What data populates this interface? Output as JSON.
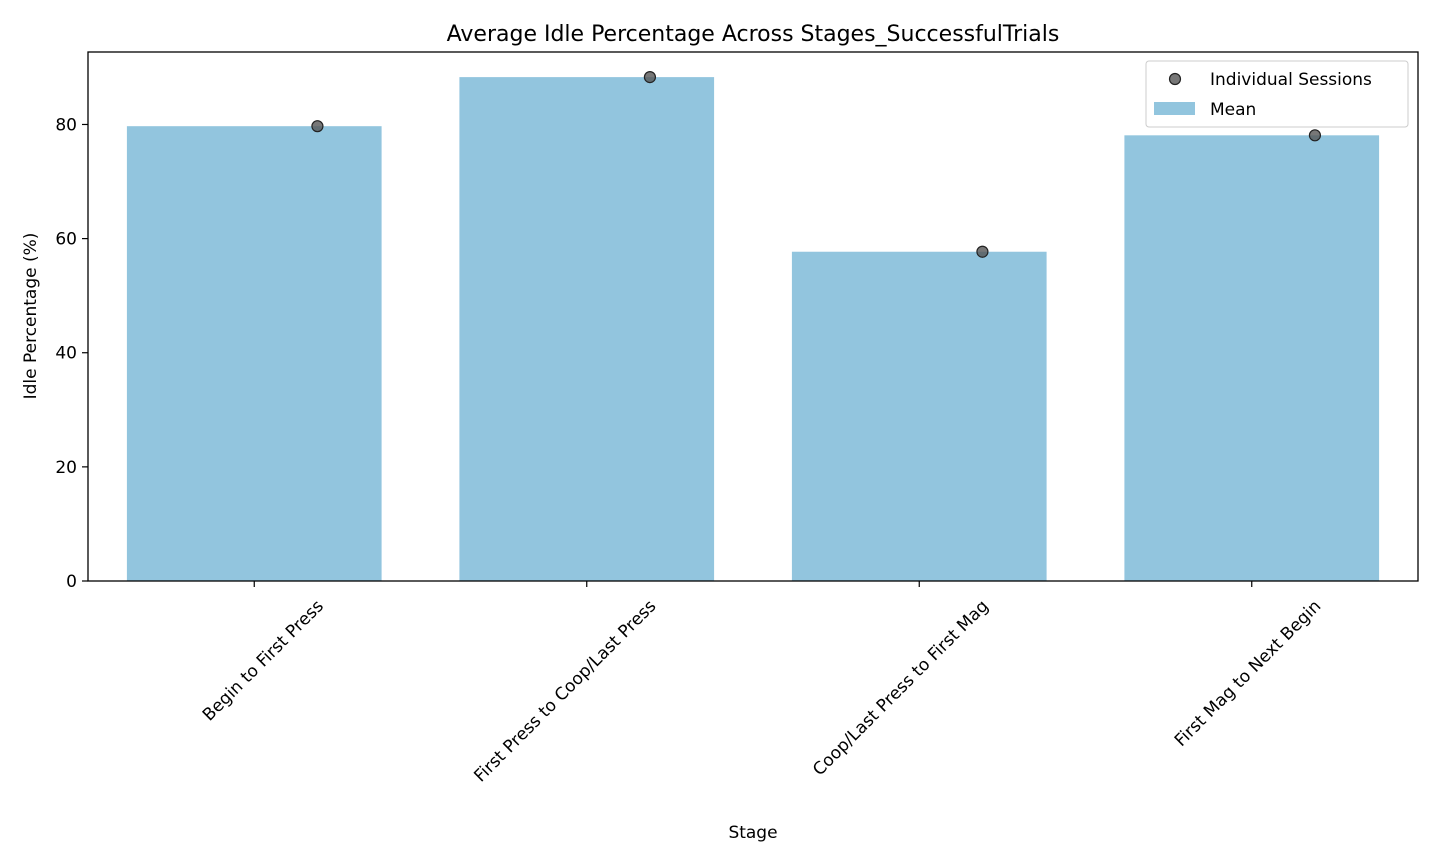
{
  "chart_data": {
    "type": "bar",
    "title": "Average Idle Percentage Across Stages_SuccessfulTrials",
    "xlabel": "Stage",
    "ylabel": "Idle Percentage (%)",
    "categories": [
      "Begin to First Press",
      "First Press to Coop/Last Press",
      "Coop/Last Press to First Mag",
      "First Mag to Next Begin"
    ],
    "series": [
      {
        "name": "Mean",
        "kind": "bar",
        "values": [
          79.7,
          88.3,
          57.7,
          78.1
        ],
        "color": "#92c5de"
      },
      {
        "name": "Individual Sessions",
        "kind": "scatter",
        "values": [
          79.7,
          88.3,
          57.7,
          78.1
        ],
        "color": "#555555"
      }
    ],
    "yticks": [
      0,
      20,
      40,
      60,
      80
    ],
    "ytick_labels": [
      "0",
      "20",
      "40",
      "60",
      "80"
    ],
    "ylim": [
      0,
      92.7
    ],
    "grid": false,
    "legend": {
      "placement": "top-right",
      "entries": [
        "Individual Sessions",
        "Mean"
      ]
    }
  }
}
